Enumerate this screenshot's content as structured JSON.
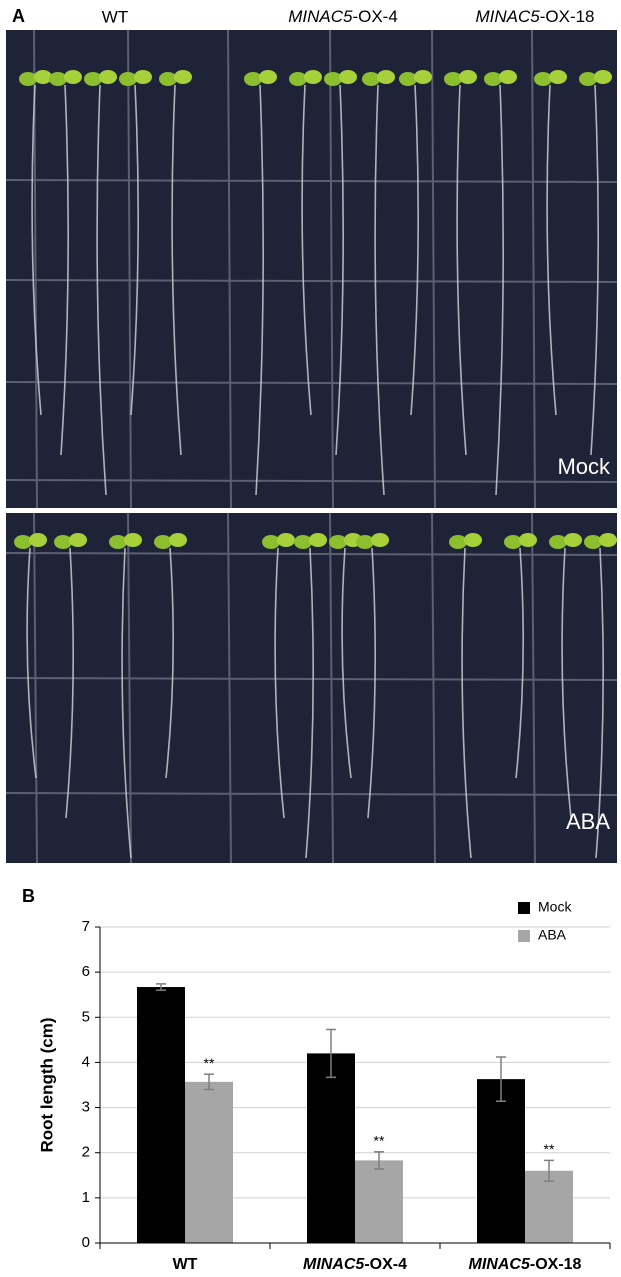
{
  "panel_a": {
    "label": "A",
    "columns": [
      "WT",
      "MINAC5-OX-4",
      "MINAC5-OX-18"
    ],
    "conditions": [
      "Mock",
      "ABA"
    ]
  },
  "chart_data": {
    "type": "bar",
    "panel_label": "B",
    "ylabel": "Root length (cm)",
    "categories": [
      "WT",
      "MINAC5-OX-4",
      "MINAC5-OX-18"
    ],
    "series": [
      {
        "name": "Mock",
        "color": "#000000",
        "values": [
          5.67,
          4.2,
          3.63
        ],
        "errors": [
          0.07,
          0.53,
          0.49
        ]
      },
      {
        "name": "ABA",
        "color": "#a6a6a6",
        "values": [
          3.57,
          1.83,
          1.6
        ],
        "errors": [
          0.17,
          0.19,
          0.23
        ],
        "significance": [
          "**",
          "**",
          "**"
        ]
      }
    ],
    "ylim": [
      0,
      7
    ],
    "yticks": [
      0,
      1,
      2,
      3,
      4,
      5,
      6,
      7
    ],
    "grid": true,
    "legend": "top-right"
  }
}
